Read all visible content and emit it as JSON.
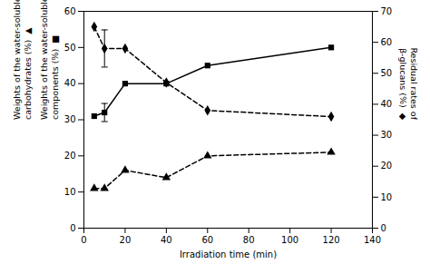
{
  "chart_data": {
    "type": "line",
    "xlabel": "Irradiation time (min)",
    "ylabel": [
      "Weights of the water-soluble\ncomponents (%)  ■",
      "Weights of the water-soluble\ncarbohydrates (%)  ▲"
    ],
    "y2label": "Residual rates of\nβ-glucans (%)  ◆",
    "x": [
      5,
      10,
      20,
      40,
      60,
      120
    ],
    "series": [
      {
        "color": "black",
        "marker": "square",
        "line_style": "solid",
        "values": [
          31,
          32,
          40,
          40,
          45,
          50
        ],
        "error": [
          null,
          2.5,
          null,
          null,
          null,
          null
        ]
      },
      {
        "color": "black",
        "marker": "triangle",
        "line_style": "dashed",
        "values": [
          11,
          11,
          16,
          14,
          20,
          21
        ]
      },
      {
        "color": "black",
        "marker": "diamond",
        "line_style": "dashed",
        "axis": "y2",
        "values": [
          65,
          58,
          58,
          47,
          38,
          36
        ],
        "error": [
          null,
          6.0,
          null,
          null,
          null,
          null
        ]
      }
    ],
    "xlim": [
      0,
      140
    ],
    "ylim": [
      0,
      60
    ],
    "y2lim": [
      0,
      70
    ],
    "xticks": [
      0,
      20,
      40,
      60,
      80,
      100,
      120,
      140
    ],
    "yticks": [
      0,
      10,
      20,
      30,
      40,
      50,
      60
    ],
    "y2ticks": [
      0,
      10,
      20,
      30,
      40,
      50,
      60,
      70
    ]
  }
}
